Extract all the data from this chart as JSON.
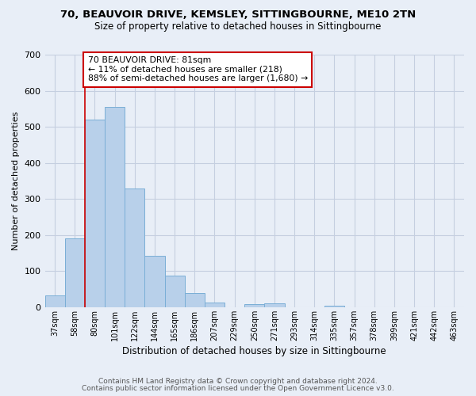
{
  "title": "70, BEAUVOIR DRIVE, KEMSLEY, SITTINGBOURNE, ME10 2TN",
  "subtitle": "Size of property relative to detached houses in Sittingbourne",
  "xlabel": "Distribution of detached houses by size in Sittingbourne",
  "ylabel": "Number of detached properties",
  "bar_labels": [
    "37sqm",
    "58sqm",
    "80sqm",
    "101sqm",
    "122sqm",
    "144sqm",
    "165sqm",
    "186sqm",
    "207sqm",
    "229sqm",
    "250sqm",
    "271sqm",
    "293sqm",
    "314sqm",
    "335sqm",
    "357sqm",
    "378sqm",
    "399sqm",
    "421sqm",
    "442sqm",
    "463sqm"
  ],
  "bar_values": [
    33,
    190,
    520,
    555,
    328,
    143,
    87,
    40,
    13,
    0,
    8,
    10,
    0,
    0,
    5,
    0,
    0,
    0,
    0,
    0,
    0
  ],
  "bar_color": "#b8d0ea",
  "bar_edge_color": "#7aaed6",
  "annotation_text": "70 BEAUVOIR DRIVE: 81sqm\n← 11% of detached houses are smaller (218)\n88% of semi-detached houses are larger (1,680) →",
  "annotation_box_color": "#ffffff",
  "annotation_box_edge_color": "#cc0000",
  "line_color": "#cc0000",
  "ylim": [
    0,
    700
  ],
  "yticks": [
    0,
    100,
    200,
    300,
    400,
    500,
    600,
    700
  ],
  "footer_line1": "Contains HM Land Registry data © Crown copyright and database right 2024.",
  "footer_line2": "Contains public sector information licensed under the Open Government Licence v3.0.",
  "bg_color": "#e8eef7",
  "plot_bg_color": "#e8eef7",
  "grid_color": "#c5cfe0"
}
